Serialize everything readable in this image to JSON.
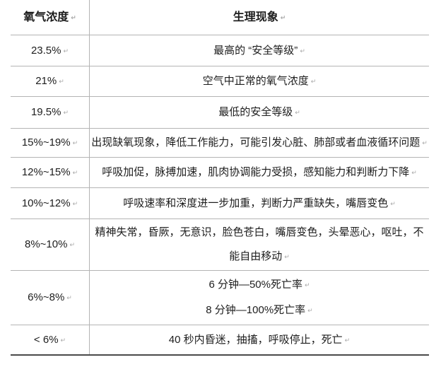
{
  "table": {
    "return_mark": "↵",
    "header": {
      "col1": "氧气浓度",
      "col2": "生理现象"
    },
    "rows": [
      {
        "concentration": "23.5%",
        "phenomena": [
          "最高的 “安全等级”"
        ]
      },
      {
        "concentration": "21%",
        "phenomena": [
          "空气中正常的氧气浓度"
        ]
      },
      {
        "concentration": "19.5%",
        "phenomena": [
          "最低的安全等级"
        ]
      },
      {
        "concentration": "15%~19%",
        "phenomena": [
          "出现缺氧现象，降低工作能力，可能引发心脏、肺部或者血液循环问题"
        ]
      },
      {
        "concentration": "12%~15%",
        "phenomena": [
          "呼吸加促，脉搏加速，肌肉协调能力受损，感知能力和判断力下降"
        ]
      },
      {
        "concentration": "10%~12%",
        "phenomena": [
          "呼吸速率和深度进一步加重，判断力严重缺失，嘴唇变色"
        ]
      },
      {
        "concentration": "8%~10%",
        "phenomena": [
          "精神失常，昏厥，无意识，脸色苍白，嘴唇变色，头晕恶心，呕吐，不能自由移动"
        ]
      },
      {
        "concentration": "6%~8%",
        "phenomena": [
          "6 分钟—50%死亡率",
          "8 分钟—100%死亡率"
        ]
      },
      {
        "concentration": "< 6%",
        "phenomena": [
          "40 秒内昏迷，抽搐，呼吸停止，死亡"
        ]
      }
    ]
  },
  "colors": {
    "background": "#ffffff",
    "text": "#1d1d1d",
    "grid_line": "#b4b4b4",
    "bottom_rule": "#4a4a4a",
    "return_mark": "#a8a8a8"
  }
}
